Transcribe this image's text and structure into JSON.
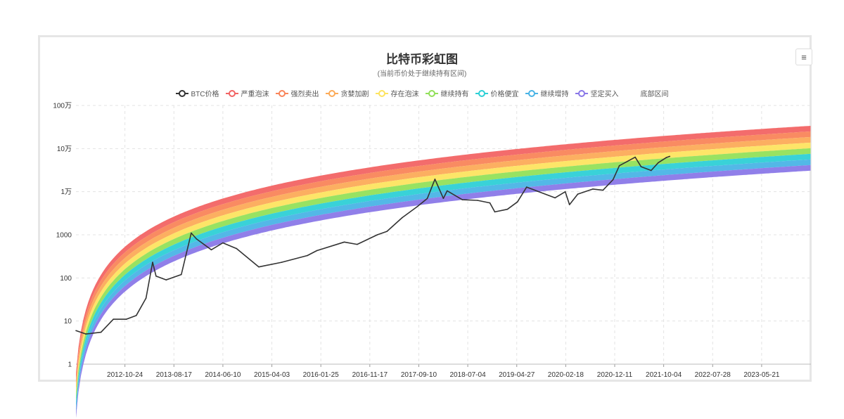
{
  "header": {
    "title": "比特币彩虹图",
    "subtitle": "(当前币价处于继续持有区间)",
    "menu_icon": "≡"
  },
  "colors": {
    "btc": "#333333",
    "bands": [
      "#f26464",
      "#f9855a",
      "#fcab58",
      "#fde460",
      "#92e05a",
      "#2ed0d6",
      "#4ab4e6",
      "#8a78e8"
    ]
  },
  "chart_data": {
    "type": "line",
    "title": "比特币彩虹图",
    "subtitle": "(当前币价处于继续持有区间)",
    "yscale": "log",
    "ylim": [
      1,
      1000000
    ],
    "ytick_labels": [
      "1",
      "10",
      "100",
      "1000",
      "1万",
      "10万",
      "100万"
    ],
    "xtick_labels": [
      "2012-10-24",
      "2013-08-17",
      "2014-06-10",
      "2015-04-03",
      "2016-01-25",
      "2016-11-17",
      "2017-09-10",
      "2018-07-04",
      "2019-04-27",
      "2020-02-18",
      "2020-12-11",
      "2021-10-04",
      "2022-07-28",
      "2023-05-21"
    ],
    "xlim": [
      "2012-01-01",
      "2024-03-15"
    ],
    "grid": true,
    "legend_position": "top",
    "legend": [
      "BTC价格",
      "严重泡沫",
      "强烈卖出",
      "贪婪加剧",
      "存在泡沫",
      "继续持有",
      "价格便宜",
      "继续增持",
      "坚定买入",
      "底部区间"
    ],
    "series": [
      {
        "name": "BTC价格",
        "x": [
          "2012-01-01",
          "2012-03-01",
          "2012-06-01",
          "2012-08-15",
          "2012-11-01",
          "2013-01-01",
          "2013-03-01",
          "2013-04-10",
          "2013-05-01",
          "2013-07-01",
          "2013-10-01",
          "2013-11-30",
          "2014-01-01",
          "2014-04-01",
          "2014-06-10",
          "2014-09-01",
          "2015-01-14",
          "2015-06-01",
          "2015-11-04",
          "2016-01-01",
          "2016-06-15",
          "2016-09-01",
          "2017-01-01",
          "2017-03-01",
          "2017-06-01",
          "2017-09-01",
          "2017-11-01",
          "2017-12-17",
          "2018-02-06",
          "2018-03-01",
          "2018-06-01",
          "2018-09-01",
          "2018-11-15",
          "2018-12-15",
          "2019-03-01",
          "2019-05-01",
          "2019-06-26",
          "2019-09-01",
          "2019-12-15",
          "2020-02-15",
          "2020-03-12",
          "2020-05-01",
          "2020-08-01",
          "2020-10-01",
          "2020-12-01",
          "2021-01-08",
          "2021-04-14",
          "2021-05-20",
          "2021-07-20",
          "2021-09-01",
          "2021-10-20",
          "2021-11-10"
        ],
        "values": [
          6,
          5,
          5.5,
          11,
          11,
          13.5,
          34,
          230,
          110,
          90,
          120,
          1100,
          800,
          450,
          650,
          480,
          180,
          230,
          330,
          430,
          680,
          600,
          1000,
          1200,
          2500,
          4500,
          7000,
          19500,
          7000,
          10500,
          6500,
          6300,
          5500,
          3400,
          3900,
          5800,
          12800,
          10200,
          7200,
          10000,
          5000,
          8800,
          11500,
          10800,
          19000,
          40000,
          63000,
          38000,
          31000,
          47000,
          62000,
          66000
        ]
      },
      {
        "name": "严重泡沫",
        "values": []
      },
      {
        "name": "强烈卖出",
        "values": []
      },
      {
        "name": "贪婪加剧",
        "values": []
      },
      {
        "name": "存在泡沫",
        "values": []
      },
      {
        "name": "继续持有",
        "values": []
      },
      {
        "name": "价格便宜",
        "values": []
      },
      {
        "name": "继续增持",
        "values": []
      },
      {
        "name": "坚定买入",
        "values": []
      },
      {
        "name": "底部区间",
        "values": []
      }
    ]
  }
}
